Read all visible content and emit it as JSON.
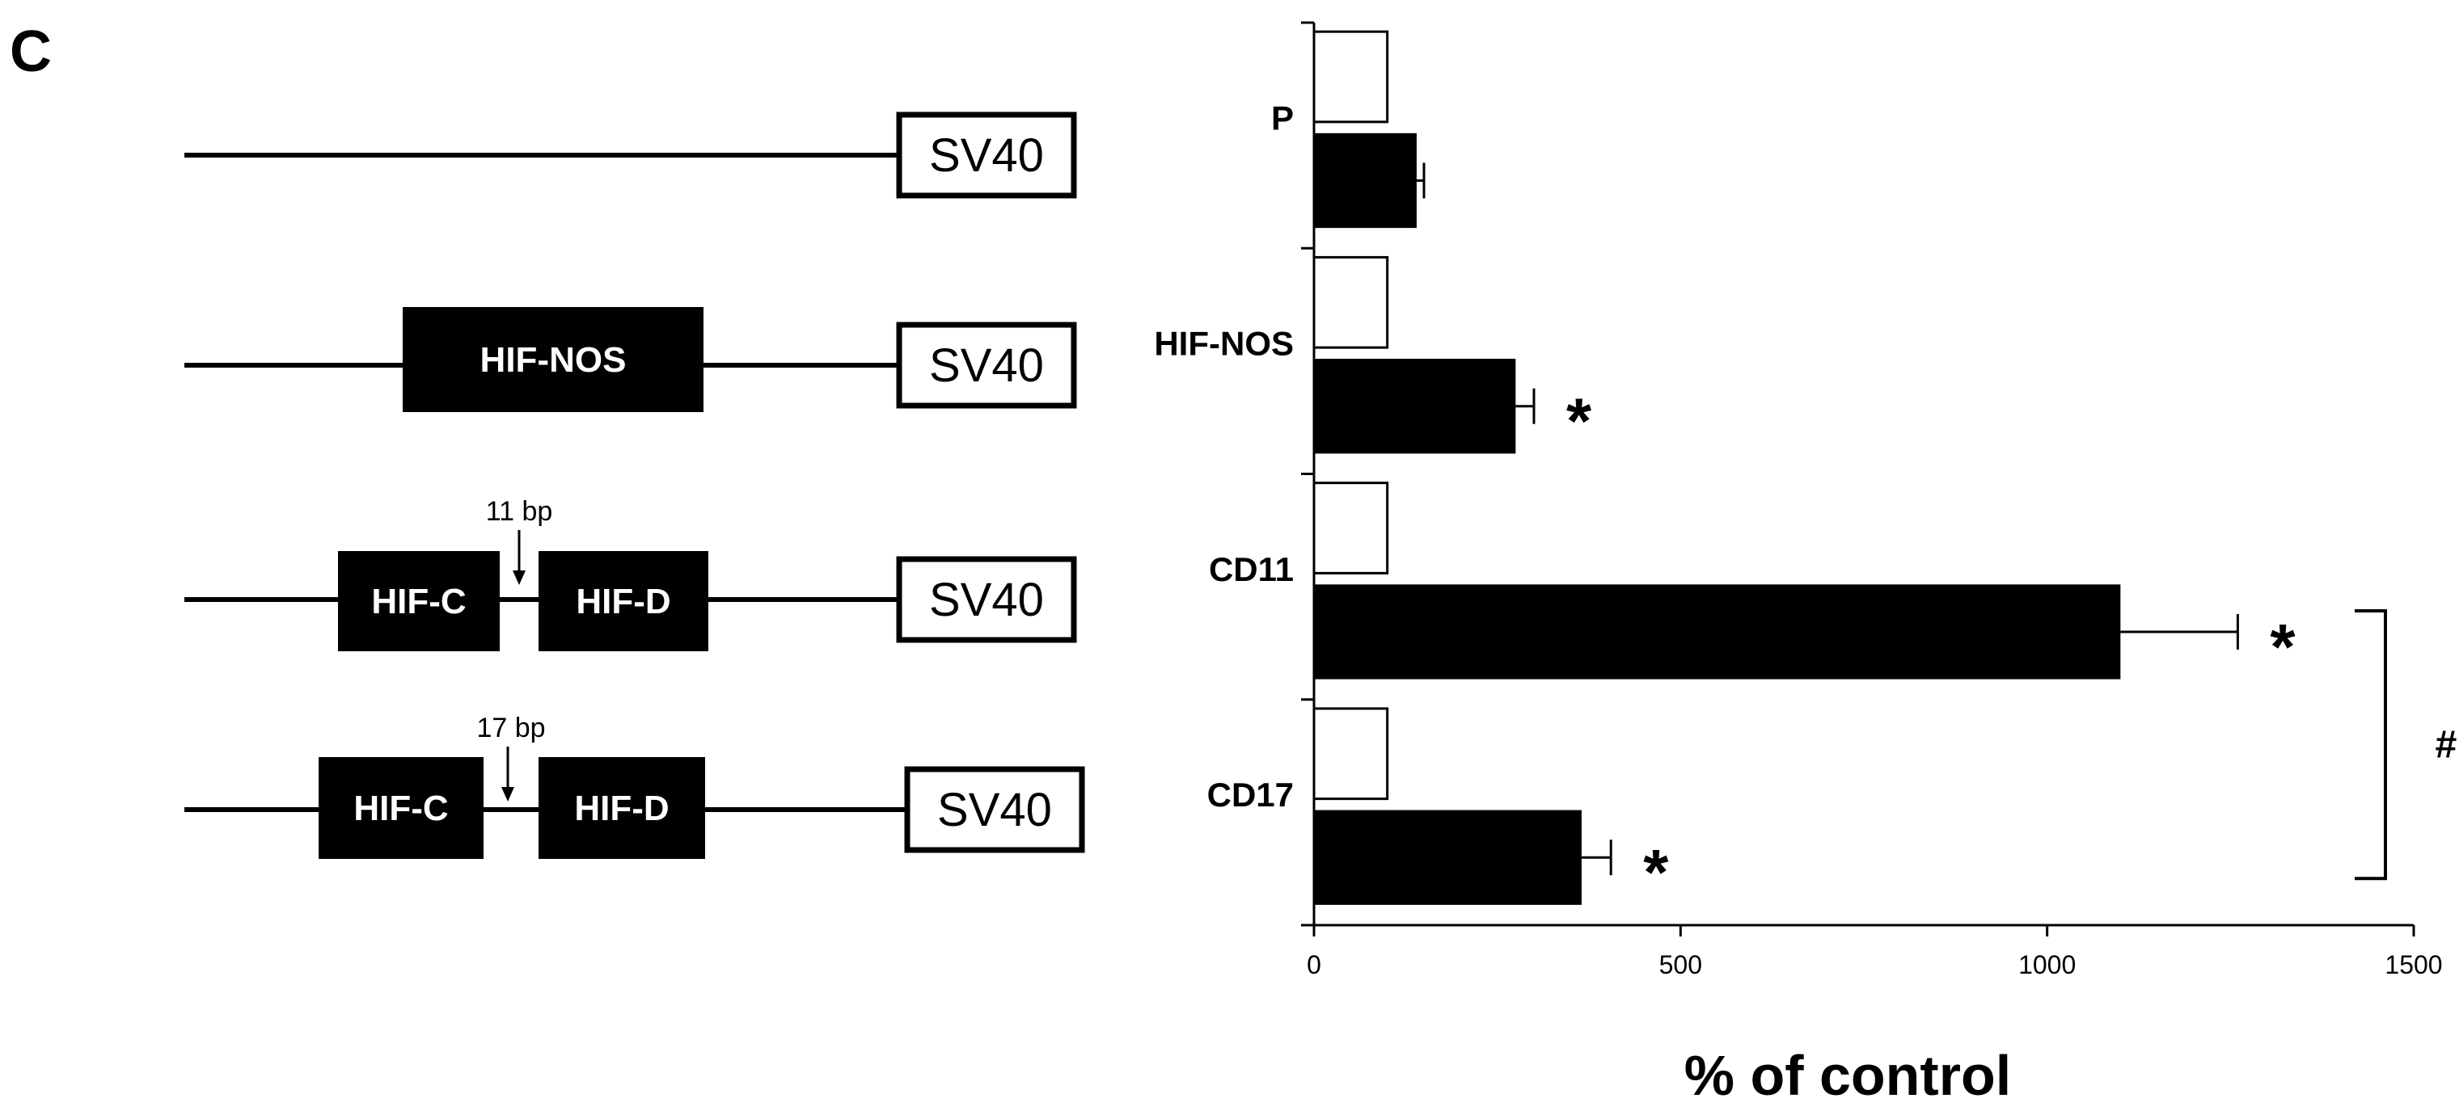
{
  "panel_label": "C",
  "constructs": [
    {
      "elements": [
        {
          "type": "box",
          "label": "SV40",
          "style": "white"
        }
      ]
    },
    {
      "elements": [
        {
          "type": "box",
          "label": "HIF-NOS",
          "style": "black"
        },
        {
          "type": "box",
          "label": "SV40",
          "style": "white"
        }
      ]
    },
    {
      "spacer_label": "11 bp",
      "elements": [
        {
          "type": "box",
          "label": "HIF-C",
          "style": "black"
        },
        {
          "type": "box",
          "label": "HIF-D",
          "style": "black"
        },
        {
          "type": "box",
          "label": "SV40",
          "style": "white"
        }
      ]
    },
    {
      "spacer_label": "17 bp",
      "elements": [
        {
          "type": "box",
          "label": "HIF-C",
          "style": "black"
        },
        {
          "type": "box",
          "label": "HIF-D",
          "style": "black"
        },
        {
          "type": "box",
          "label": "SV40",
          "style": "white"
        }
      ]
    }
  ],
  "chart_data": {
    "type": "bar",
    "orientation": "horizontal",
    "categories": [
      "P",
      "HIF-NOS",
      "CD11",
      "CD17"
    ],
    "series": [
      {
        "style": "open",
        "values": [
          100,
          100,
          100,
          100
        ]
      },
      {
        "style": "filled",
        "values": [
          140,
          275,
          1100,
          365
        ],
        "errors": [
          10,
          25,
          160,
          40
        ]
      }
    ],
    "significance": [
      "",
      "*",
      "*",
      "*"
    ],
    "bracket": {
      "from": "CD11",
      "to": "CD17",
      "label": "#"
    },
    "xlim": [
      0,
      1500
    ],
    "xticks": [
      0,
      500,
      1000,
      1500
    ],
    "xlabel": "% of control",
    "grid": false
  }
}
